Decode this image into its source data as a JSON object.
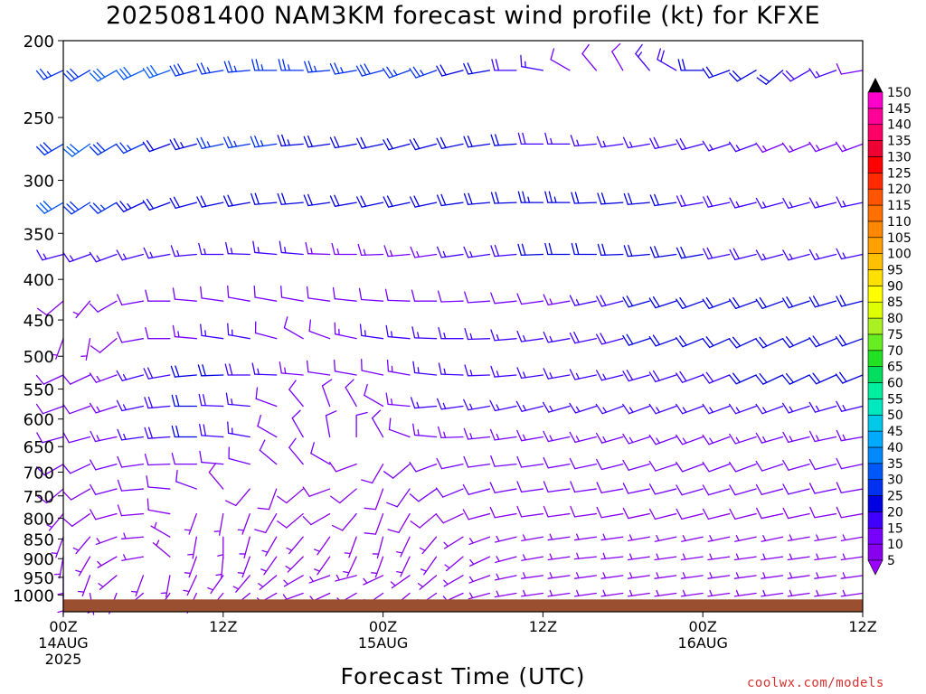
{
  "chart_data": {
    "type": "wind-barb profile",
    "title": "2025081400 NAM3KM forecast wind profile (kt) for KFXE",
    "xlabel": "Forecast Time (UTC)",
    "ylabel": "",
    "y_levels_hpa": [
      200,
      250,
      300,
      350,
      400,
      450,
      500,
      550,
      600,
      650,
      700,
      750,
      800,
      850,
      900,
      950,
      1000
    ],
    "ylim": [
      200,
      1050
    ],
    "yscale": "log",
    "xlim_hours": [
      0,
      60
    ],
    "x_ticks": [
      {
        "hour": 0,
        "lines": [
          "00Z",
          "14AUG",
          "2025"
        ]
      },
      {
        "hour": 12,
        "lines": [
          "12Z"
        ]
      },
      {
        "hour": 24,
        "lines": [
          "00Z",
          "15AUG"
        ]
      },
      {
        "hour": 36,
        "lines": [
          "12Z"
        ]
      },
      {
        "hour": 48,
        "lines": [
          "00Z",
          "16AUG"
        ]
      },
      {
        "hour": 60,
        "lines": [
          "12Z"
        ]
      }
    ],
    "ground": {
      "surface_pressure_hpa": 1013,
      "color": "#9a5030"
    },
    "colorbar": {
      "levels": [
        5,
        10,
        15,
        20,
        25,
        30,
        35,
        40,
        45,
        50,
        55,
        60,
        65,
        70,
        75,
        80,
        85,
        90,
        95,
        100,
        105,
        110,
        115,
        120,
        125,
        130,
        135,
        140,
        145,
        150
      ],
      "colors": [
        "#8800ee",
        "#7700ff",
        "#4000ff",
        "#0000e0",
        "#0030f0",
        "#0058f8",
        "#0088ff",
        "#00aaff",
        "#00c8e8",
        "#00e8c0",
        "#00f0a0",
        "#00dd60",
        "#22e022",
        "#66ee22",
        "#aaf022",
        "#ddff00",
        "#ffff00",
        "#ffe000",
        "#ffc000",
        "#ffa000",
        "#ff8800",
        "#ff7000",
        "#ff5500",
        "#ff2a00",
        "#ff0000",
        "#ee0033",
        "#ff0066",
        "#ff0099",
        "#ff00cc",
        "#ff00ff"
      ],
      "top_color": "#000000",
      "bottom_color": "#9900ff"
    },
    "barb_hour_step": 2,
    "layers": [
      {
        "p": 218,
        "dir": [
          245,
          240,
          240,
          245,
          250,
          255,
          260,
          265,
          270,
          270,
          265,
          260,
          255,
          250,
          250,
          255,
          260,
          270,
          280,
          300,
          320,
          330,
          320,
          300,
          270,
          250,
          240,
          230,
          240,
          250,
          260
        ],
        "spd": [
          25,
          28,
          30,
          30,
          30,
          28,
          26,
          25,
          25,
          25,
          26,
          27,
          28,
          27,
          25,
          22,
          20,
          18,
          15,
          12,
          10,
          12,
          15,
          18,
          20,
          22,
          22,
          20,
          18,
          15,
          12
        ]
      },
      {
        "p": 270,
        "dir": [
          240,
          235,
          240,
          245,
          250,
          255,
          258,
          260,
          262,
          265,
          262,
          260,
          258,
          255,
          255,
          258,
          262,
          266,
          270,
          270,
          265,
          262,
          260,
          258,
          255,
          252,
          250,
          248,
          248,
          250,
          250
        ],
        "spd": [
          28,
          30,
          28,
          25,
          22,
          24,
          26,
          26,
          25,
          24,
          22,
          20,
          20,
          20,
          22,
          22,
          22,
          20,
          18,
          16,
          15,
          15,
          16,
          18,
          18,
          16,
          15,
          14,
          14,
          14,
          14
        ]
      },
      {
        "p": 320,
        "dir": [
          240,
          238,
          240,
          245,
          250,
          255,
          258,
          260,
          265,
          265,
          262,
          260,
          258,
          258,
          258,
          262,
          265,
          268,
          270,
          270,
          268,
          266,
          265,
          262,
          260,
          258,
          256,
          255,
          255,
          256,
          258
        ],
        "spd": [
          30,
          28,
          26,
          24,
          22,
          20,
          20,
          20,
          20,
          22,
          22,
          22,
          22,
          22,
          20,
          20,
          20,
          22,
          24,
          24,
          22,
          22,
          20,
          20,
          18,
          18,
          16,
          16,
          15,
          15,
          15
        ]
      },
      {
        "p": 372,
        "dir": [
          255,
          250,
          250,
          255,
          260,
          265,
          270,
          272,
          275,
          275,
          272,
          270,
          268,
          265,
          262,
          262,
          262,
          265,
          268,
          270,
          270,
          268,
          265,
          262,
          260,
          258,
          256,
          255,
          255,
          256,
          258
        ],
        "spd": [
          16,
          15,
          15,
          15,
          15,
          15,
          15,
          15,
          15,
          15,
          14,
          14,
          14,
          14,
          14,
          15,
          16,
          18,
          20,
          22,
          22,
          22,
          22,
          20,
          20,
          18,
          18,
          16,
          16,
          16,
          16
        ]
      },
      {
        "p": 426,
        "dir": [
          230,
          220,
          240,
          260,
          270,
          275,
          278,
          280,
          280,
          280,
          278,
          276,
          274,
          272,
          270,
          268,
          266,
          264,
          262,
          260,
          258,
          256,
          254,
          252,
          250,
          250,
          250,
          250,
          252,
          254,
          256
        ],
        "spd": [
          8,
          6,
          10,
          12,
          12,
          12,
          12,
          12,
          12,
          12,
          12,
          12,
          12,
          12,
          12,
          12,
          12,
          12,
          12,
          14,
          16,
          18,
          20,
          20,
          22,
          22,
          22,
          22,
          22,
          22,
          22
        ]
      },
      {
        "p": 475,
        "dir": [
          200,
          190,
          230,
          260,
          270,
          275,
          278,
          280,
          285,
          300,
          290,
          282,
          278,
          275,
          272,
          270,
          268,
          265,
          262,
          260,
          258,
          255,
          252,
          250,
          248,
          246,
          245,
          245,
          246,
          248,
          250
        ],
        "spd": [
          5,
          5,
          8,
          10,
          12,
          14,
          15,
          15,
          12,
          10,
          12,
          14,
          15,
          15,
          15,
          15,
          15,
          15,
          16,
          16,
          18,
          18,
          20,
          20,
          22,
          22,
          22,
          22,
          22,
          22,
          22
        ]
      },
      {
        "p": 528,
        "dir": [
          245,
          245,
          250,
          255,
          260,
          265,
          268,
          270,
          272,
          275,
          278,
          280,
          282,
          280,
          276,
          272,
          268,
          265,
          262,
          260,
          258,
          256,
          254,
          252,
          250,
          248,
          246,
          245,
          245,
          246,
          248
        ],
        "spd": [
          12,
          12,
          14,
          16,
          18,
          20,
          20,
          18,
          16,
          14,
          12,
          12,
          12,
          14,
          15,
          16,
          16,
          16,
          16,
          16,
          16,
          16,
          18,
          18,
          18,
          18,
          20,
          22,
          22,
          20,
          20
        ]
      },
      {
        "p": 578,
        "dir": [
          250,
          250,
          252,
          258,
          265,
          270,
          272,
          275,
          290,
          320,
          340,
          330,
          300,
          275,
          265,
          262,
          260,
          258,
          256,
          254,
          252,
          250,
          250,
          250,
          250,
          250,
          250,
          250,
          252,
          254,
          256
        ],
        "spd": [
          12,
          12,
          14,
          16,
          18,
          20,
          18,
          16,
          12,
          10,
          10,
          10,
          12,
          14,
          15,
          16,
          16,
          16,
          16,
          16,
          16,
          16,
          16,
          16,
          16,
          16,
          16,
          16,
          16,
          16,
          16
        ]
      },
      {
        "p": 632,
        "dir": [
          255,
          255,
          258,
          262,
          266,
          270,
          274,
          280,
          300,
          330,
          350,
          360,
          330,
          290,
          275,
          268,
          264,
          262,
          260,
          258,
          256,
          254,
          252,
          250,
          250,
          250,
          252,
          254,
          256,
          258,
          260
        ],
        "spd": [
          12,
          12,
          14,
          16,
          18,
          20,
          18,
          15,
          12,
          10,
          10,
          10,
          10,
          12,
          14,
          14,
          14,
          14,
          14,
          14,
          14,
          14,
          14,
          14,
          14,
          14,
          14,
          14,
          14,
          14,
          14
        ]
      },
      {
        "p": 684,
        "dir": [
          240,
          245,
          255,
          262,
          268,
          270,
          275,
          285,
          310,
          320,
          300,
          250,
          210,
          230,
          250,
          258,
          262,
          264,
          262,
          260,
          258,
          256,
          254,
          252,
          250,
          250,
          250,
          252,
          254,
          256,
          258
        ],
        "spd": [
          10,
          10,
          12,
          12,
          12,
          12,
          12,
          12,
          10,
          10,
          10,
          8,
          8,
          10,
          12,
          12,
          12,
          12,
          12,
          12,
          12,
          12,
          12,
          12,
          12,
          12,
          12,
          12,
          12,
          12,
          12
        ]
      },
      {
        "p": 735,
        "dir": [
          230,
          240,
          255,
          265,
          275,
          290,
          320,
          220,
          200,
          230,
          250,
          230,
          200,
          215,
          235,
          248,
          255,
          260,
          262,
          262,
          262,
          260,
          258,
          256,
          254,
          254,
          254,
          255,
          256,
          258,
          260
        ],
        "spd": [
          8,
          8,
          10,
          10,
          10,
          10,
          8,
          8,
          8,
          8,
          8,
          8,
          8,
          10,
          10,
          10,
          10,
          10,
          10,
          10,
          10,
          10,
          10,
          10,
          10,
          10,
          10,
          10,
          10,
          10,
          10
        ]
      },
      {
        "p": 790,
        "dir": [
          220,
          235,
          255,
          265,
          280,
          200,
          190,
          200,
          210,
          230,
          240,
          220,
          200,
          210,
          230,
          245,
          255,
          260,
          262,
          262,
          262,
          260,
          258,
          256,
          256,
          256,
          256,
          258,
          258,
          260,
          260
        ],
        "spd": [
          6,
          8,
          8,
          8,
          8,
          6,
          6,
          6,
          8,
          8,
          8,
          8,
          8,
          8,
          8,
          8,
          8,
          8,
          8,
          8,
          8,
          8,
          8,
          8,
          8,
          8,
          8,
          8,
          8,
          8,
          8
        ]
      },
      {
        "p": 845,
        "dir": [
          200,
          220,
          250,
          265,
          300,
          190,
          180,
          195,
          210,
          220,
          215,
          200,
          195,
          205,
          220,
          238,
          250,
          256,
          260,
          262,
          262,
          262,
          260,
          258,
          258,
          258,
          258,
          258,
          260,
          260,
          260
        ],
        "spd": [
          5,
          6,
          6,
          6,
          6,
          6,
          6,
          6,
          6,
          6,
          6,
          6,
          6,
          6,
          6,
          6,
          6,
          6,
          6,
          6,
          6,
          6,
          6,
          6,
          6,
          6,
          6,
          6,
          6,
          6,
          6
        ]
      },
      {
        "p": 895,
        "dir": [
          190,
          210,
          240,
          260,
          310,
          200,
          185,
          200,
          215,
          225,
          215,
          205,
          200,
          205,
          215,
          230,
          245,
          255,
          260,
          262,
          264,
          264,
          262,
          262,
          262,
          262,
          262,
          262,
          262,
          262,
          262
        ],
        "spd": [
          5,
          5,
          5,
          5,
          5,
          5,
          5,
          5,
          5,
          5,
          5,
          5,
          5,
          5,
          5,
          5,
          5,
          5,
          5,
          5,
          5,
          5,
          5,
          5,
          5,
          5,
          5,
          5,
          5,
          5,
          5
        ]
      },
      {
        "p": 945,
        "dir": [
          180,
          200,
          230,
          200,
          190,
          205,
          215,
          220,
          230,
          240,
          250,
          255,
          245,
          235,
          230,
          240,
          250,
          258,
          262,
          262,
          262,
          262,
          262,
          262,
          262,
          262,
          262,
          262,
          262,
          262,
          262
        ],
        "spd": [
          4,
          4,
          4,
          4,
          4,
          4,
          4,
          4,
          4,
          4,
          4,
          4,
          4,
          4,
          4,
          4,
          4,
          4,
          4,
          4,
          4,
          4,
          4,
          4,
          4,
          4,
          4,
          4,
          4,
          4,
          4
        ]
      },
      {
        "p": 995,
        "dir": [
          180,
          170,
          200,
          230,
          215,
          205,
          220,
          230,
          240,
          250,
          245,
          240,
          235,
          230,
          235,
          245,
          255,
          260,
          262,
          262,
          262,
          262,
          262,
          262,
          262,
          262,
          262,
          262,
          262,
          262,
          262
        ],
        "spd": [
          3,
          3,
          3,
          3,
          3,
          3,
          3,
          3,
          3,
          3,
          3,
          3,
          3,
          3,
          3,
          3,
          3,
          3,
          3,
          3,
          3,
          3,
          3,
          3,
          3,
          3,
          3,
          3,
          3,
          3,
          3
        ]
      }
    ]
  },
  "footer": {
    "credit": "coolwx.com/models"
  }
}
